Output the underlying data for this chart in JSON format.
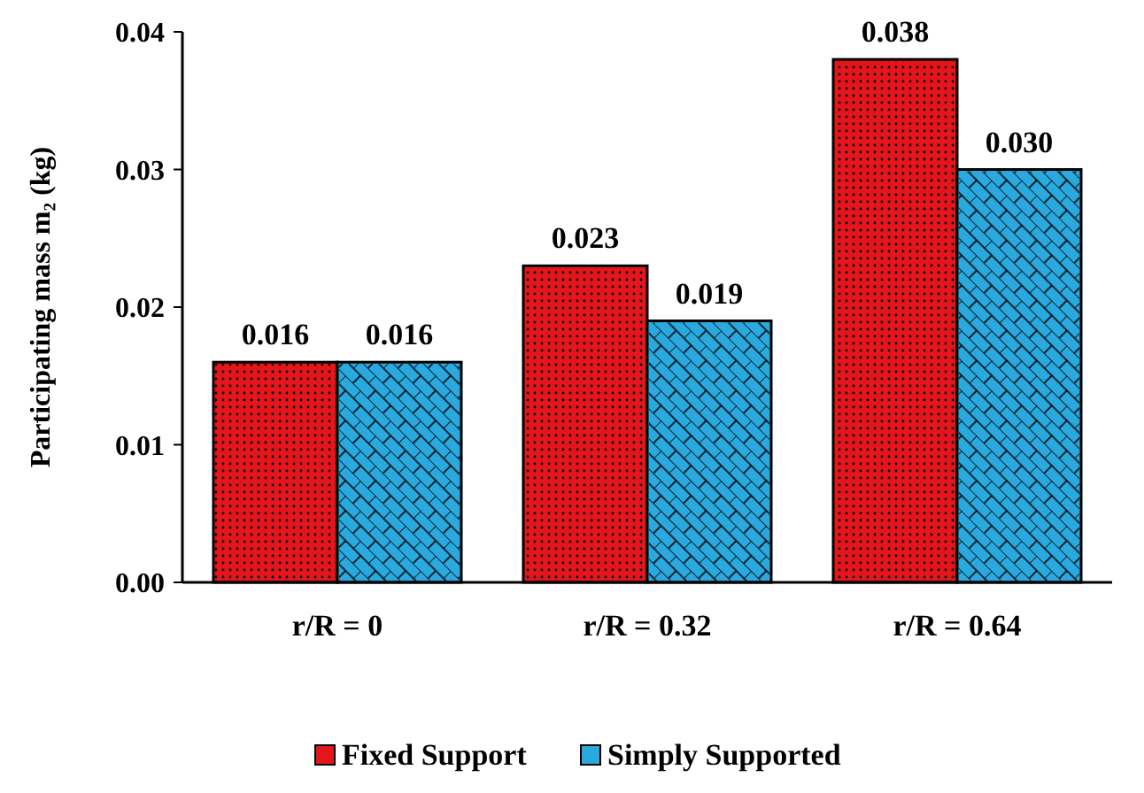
{
  "chart_data": {
    "type": "bar",
    "ylabel": "Participating mass m₂ (kg)",
    "categories": [
      "r/R = 0",
      "r/R = 0.32",
      "r/R = 0.64"
    ],
    "series": [
      {
        "name": "Fixed Support",
        "color": "#e3161c",
        "values": [
          0.016,
          0.023,
          0.038
        ],
        "value_labels": [
          "0.016",
          "0.023",
          "0.038"
        ]
      },
      {
        "name": "Simply Supported",
        "color": "#2aa9df",
        "values": [
          0.016,
          0.019,
          0.03
        ],
        "value_labels": [
          "0.016",
          "0.019",
          "0.030"
        ]
      }
    ],
    "ylim": [
      0,
      0.04
    ],
    "yticks": [
      {
        "value": 0,
        "label": "0.00"
      },
      {
        "value": 0.01,
        "label": "0.01"
      },
      {
        "value": 0.02,
        "label": "0.02"
      },
      {
        "value": 0.03,
        "label": "0.03"
      },
      {
        "value": 0.04,
        "label": "0.04"
      }
    ],
    "grid": false,
    "legend": "bottom"
  }
}
